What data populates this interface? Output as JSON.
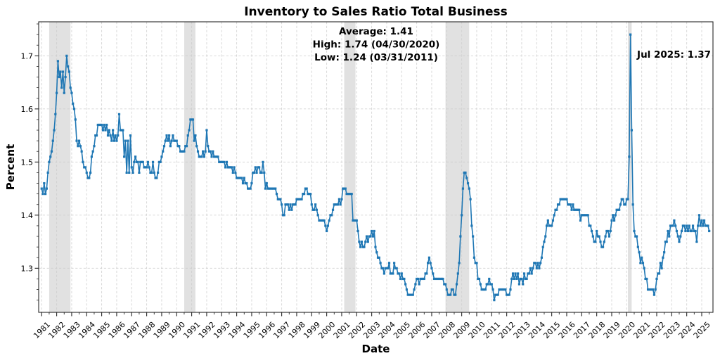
{
  "title": "Inventory to Sales Ratio Total Business",
  "annotations": {
    "stats_lines": [
      "Average: 1.41",
      "High: 1.74 (04/30/2020)",
      "Low: 1.24 (03/31/2011)"
    ],
    "latest_label": "Jul 2025: 1.37"
  },
  "chart_data": {
    "type": "line",
    "title": "Inventory to Sales Ratio Total Business",
    "xlabel": "Date",
    "ylabel": "Percent",
    "legend": "none",
    "grid": true,
    "line_color": "#1f77b4",
    "recession_band_color": "#cfcfcf",
    "grid_color": "#cccccc",
    "spine_color": "#262626",
    "xlim": [
      1980.8,
      2025.75
    ],
    "ylim": [
      1.217,
      1.764
    ],
    "y_ticks": [
      1.3,
      1.4,
      1.5,
      1.6,
      1.7
    ],
    "y_tick_labels": [
      "1.3",
      "1.4",
      "1.5",
      "1.6",
      "1.7"
    ],
    "x_tick_labels": [
      "1981",
      "1982",
      "1983",
      "1984",
      "1985",
      "1986",
      "1987",
      "1988",
      "1989",
      "1990",
      "1991",
      "1992",
      "1993",
      "1994",
      "1995",
      "1996",
      "1997",
      "1998",
      "1999",
      "2000",
      "2001",
      "2002",
      "2003",
      "2004",
      "2005",
      "2006",
      "2007",
      "2008",
      "2009",
      "2010",
      "2011",
      "2012",
      "2013",
      "2014",
      "2015",
      "2016",
      "2017",
      "2018",
      "2019",
      "2020",
      "2021",
      "2022",
      "2023",
      "2024",
      "2025"
    ],
    "recession_bands": [
      [
        1981.5,
        1982.92
      ],
      [
        1990.5,
        1991.25
      ],
      [
        2001.17,
        2001.92
      ],
      [
        2007.92,
        2009.5
      ],
      [
        2020.08,
        2020.33
      ]
    ],
    "stats": {
      "average": 1.41,
      "high": {
        "value": 1.74,
        "date": "04/30/2020"
      },
      "low": {
        "value": 1.24,
        "date": "03/31/2011"
      },
      "latest": {
        "label": "Jul 2025",
        "value": 1.37
      }
    },
    "series": [
      {
        "name": "Inventory to Sales Ratio Total Business",
        "frequency": "monthly",
        "values_by_year": [
          {
            "year": 1981,
            "values": [
              1.45,
              1.44,
              1.46,
              1.44,
              1.45,
              1.48,
              1.5,
              1.51,
              1.52,
              1.54,
              1.56,
              1.59
            ]
          },
          {
            "year": 1982,
            "values": [
              1.63,
              1.69,
              1.66,
              1.67,
              1.64,
              1.67,
              1.63,
              1.66,
              1.7,
              1.68,
              1.67,
              1.64
            ]
          },
          {
            "year": 1983,
            "values": [
              1.63,
              1.61,
              1.6,
              1.58,
              1.54,
              1.53,
              1.54,
              1.53,
              1.52,
              1.5,
              1.49,
              1.49
            ]
          },
          {
            "year": 1984,
            "values": [
              1.48,
              1.47,
              1.47,
              1.48,
              1.51,
              1.52,
              1.53,
              1.55,
              1.55,
              1.57,
              1.57,
              1.57
            ]
          },
          {
            "year": 1985,
            "values": [
              1.57,
              1.56,
              1.57,
              1.56,
              1.57,
              1.55,
              1.56,
              1.55,
              1.54,
              1.56,
              1.54,
              1.55
            ]
          },
          {
            "year": 1986,
            "values": [
              1.54,
              1.55,
              1.59,
              1.56,
              1.56,
              1.56,
              1.51,
              1.54,
              1.48,
              1.54,
              1.48,
              1.55
            ]
          },
          {
            "year": 1987,
            "values": [
              1.49,
              1.48,
              1.5,
              1.51,
              1.5,
              1.5,
              1.48,
              1.5,
              1.5,
              1.5,
              1.49,
              1.49
            ]
          },
          {
            "year": 1988,
            "values": [
              1.49,
              1.5,
              1.49,
              1.48,
              1.48,
              1.5,
              1.48,
              1.47,
              1.47,
              1.48,
              1.5,
              1.5
            ]
          },
          {
            "year": 1989,
            "values": [
              1.51,
              1.52,
              1.53,
              1.54,
              1.55,
              1.54,
              1.55,
              1.53,
              1.54,
              1.55,
              1.54,
              1.54
            ]
          },
          {
            "year": 1990,
            "values": [
              1.54,
              1.53,
              1.53,
              1.52,
              1.52,
              1.52,
              1.52,
              1.53,
              1.53,
              1.55,
              1.56,
              1.58
            ]
          },
          {
            "year": 1991,
            "values": [
              1.58,
              1.58,
              1.54,
              1.55,
              1.53,
              1.52,
              1.51,
              1.51,
              1.51,
              1.52,
              1.51,
              1.52
            ]
          },
          {
            "year": 1992,
            "values": [
              1.56,
              1.53,
              1.52,
              1.52,
              1.51,
              1.52,
              1.51,
              1.51,
              1.51,
              1.51,
              1.5,
              1.5
            ]
          },
          {
            "year": 1993,
            "values": [
              1.5,
              1.5,
              1.5,
              1.49,
              1.5,
              1.49,
              1.49,
              1.49,
              1.49,
              1.48,
              1.49,
              1.48
            ]
          },
          {
            "year": 1994,
            "values": [
              1.47,
              1.47,
              1.47,
              1.47,
              1.47,
              1.46,
              1.47,
              1.46,
              1.46,
              1.45,
              1.45,
              1.45
            ]
          },
          {
            "year": 1995,
            "values": [
              1.46,
              1.48,
              1.48,
              1.49,
              1.48,
              1.49,
              1.49,
              1.48,
              1.48,
              1.5,
              1.48,
              1.45
            ]
          },
          {
            "year": 1996,
            "values": [
              1.46,
              1.45,
              1.45,
              1.45,
              1.45,
              1.45,
              1.45,
              1.45,
              1.44,
              1.43,
              1.43,
              1.43
            ]
          },
          {
            "year": 1997,
            "values": [
              1.42,
              1.4,
              1.4,
              1.42,
              1.42,
              1.42,
              1.41,
              1.42,
              1.41,
              1.42,
              1.42,
              1.42
            ]
          },
          {
            "year": 1998,
            "values": [
              1.43,
              1.43,
              1.43,
              1.43,
              1.43,
              1.44,
              1.44,
              1.45,
              1.45,
              1.44,
              1.44,
              1.44
            ]
          },
          {
            "year": 1999,
            "values": [
              1.42,
              1.41,
              1.41,
              1.42,
              1.41,
              1.4,
              1.39,
              1.39,
              1.39,
              1.39,
              1.39,
              1.38
            ]
          },
          {
            "year": 2000,
            "values": [
              1.37,
              1.38,
              1.39,
              1.4,
              1.4,
              1.41,
              1.42,
              1.42,
              1.42,
              1.42,
              1.43,
              1.42
            ]
          },
          {
            "year": 2001,
            "values": [
              1.43,
              1.45,
              1.45,
              1.45,
              1.44,
              1.44,
              1.44,
              1.44,
              1.44,
              1.39,
              1.39,
              1.39
            ]
          },
          {
            "year": 2002,
            "values": [
              1.39,
              1.37,
              1.35,
              1.34,
              1.35,
              1.34,
              1.34,
              1.35,
              1.36,
              1.35,
              1.36,
              1.36
            ]
          },
          {
            "year": 2003,
            "values": [
              1.37,
              1.36,
              1.37,
              1.34,
              1.33,
              1.32,
              1.32,
              1.31,
              1.3,
              1.3,
              1.29,
              1.3
            ]
          },
          {
            "year": 2004,
            "values": [
              1.3,
              1.3,
              1.31,
              1.29,
              1.29,
              1.29,
              1.31,
              1.3,
              1.3,
              1.29,
              1.29,
              1.28
            ]
          },
          {
            "year": 2005,
            "values": [
              1.29,
              1.28,
              1.28,
              1.27,
              1.26,
              1.25,
              1.25,
              1.25,
              1.25,
              1.25,
              1.26,
              1.27
            ]
          },
          {
            "year": 2006,
            "values": [
              1.28,
              1.28,
              1.27,
              1.28,
              1.28,
              1.28,
              1.28,
              1.29,
              1.29,
              1.31,
              1.32,
              1.31
            ]
          },
          {
            "year": 2007,
            "values": [
              1.3,
              1.29,
              1.28,
              1.28,
              1.28,
              1.28,
              1.28,
              1.28,
              1.28,
              1.28,
              1.27,
              1.27
            ]
          },
          {
            "year": 2008,
            "values": [
              1.26,
              1.25,
              1.25,
              1.25,
              1.26,
              1.26,
              1.25,
              1.25,
              1.27,
              1.29,
              1.31,
              1.36
            ]
          },
          {
            "year": 2009,
            "values": [
              1.4,
              1.45,
              1.48,
              1.48,
              1.47,
              1.46,
              1.45,
              1.43,
              1.38,
              1.36,
              1.32,
              1.31
            ]
          },
          {
            "year": 2010,
            "values": [
              1.31,
              1.28,
              1.28,
              1.27,
              1.26,
              1.26,
              1.26,
              1.26,
              1.27,
              1.27,
              1.28,
              1.27
            ]
          },
          {
            "year": 2011,
            "values": [
              1.27,
              1.26,
              1.24,
              1.25,
              1.25,
              1.25,
              1.26,
              1.26,
              1.26,
              1.26,
              1.26,
              1.26
            ]
          },
          {
            "year": 2012,
            "values": [
              1.25,
              1.25,
              1.25,
              1.26,
              1.28,
              1.29,
              1.28,
              1.29,
              1.28,
              1.29,
              1.27,
              1.28
            ]
          },
          {
            "year": 2013,
            "values": [
              1.28,
              1.27,
              1.29,
              1.28,
              1.28,
              1.29,
              1.29,
              1.3,
              1.29,
              1.3,
              1.31,
              1.31
            ]
          },
          {
            "year": 2014,
            "values": [
              1.3,
              1.31,
              1.3,
              1.31,
              1.32,
              1.34,
              1.35,
              1.36,
              1.38,
              1.39,
              1.38,
              1.38
            ]
          },
          {
            "year": 2015,
            "values": [
              1.38,
              1.39,
              1.4,
              1.41,
              1.41,
              1.42,
              1.42,
              1.43,
              1.43,
              1.43,
              1.43,
              1.43
            ]
          },
          {
            "year": 2016,
            "values": [
              1.43,
              1.42,
              1.42,
              1.42,
              1.41,
              1.42,
              1.41,
              1.41,
              1.41,
              1.41,
              1.41,
              1.39
            ]
          },
          {
            "year": 2017,
            "values": [
              1.4,
              1.4,
              1.4,
              1.4,
              1.4,
              1.4,
              1.38,
              1.38,
              1.37,
              1.36,
              1.35,
              1.35
            ]
          },
          {
            "year": 2018,
            "values": [
              1.37,
              1.36,
              1.36,
              1.35,
              1.34,
              1.34,
              1.35,
              1.36,
              1.37,
              1.37,
              1.36,
              1.37
            ]
          },
          {
            "year": 2019,
            "values": [
              1.39,
              1.4,
              1.39,
              1.4,
              1.41,
              1.41,
              1.41,
              1.42,
              1.43,
              1.43,
              1.42,
              1.42
            ]
          },
          {
            "year": 2020,
            "values": [
              1.43,
              1.43,
              1.51,
              1.74,
              1.56,
              1.42,
              1.37,
              1.36,
              1.36,
              1.34,
              1.33,
              1.31
            ]
          },
          {
            "year": 2021,
            "values": [
              1.32,
              1.31,
              1.3,
              1.28,
              1.28,
              1.26,
              1.26,
              1.26,
              1.26,
              1.26,
              1.25,
              1.26
            ]
          },
          {
            "year": 2022,
            "values": [
              1.28,
              1.29,
              1.29,
              1.31,
              1.3,
              1.32,
              1.33,
              1.35,
              1.35,
              1.37,
              1.36,
              1.38
            ]
          },
          {
            "year": 2023,
            "values": [
              1.38,
              1.38,
              1.39,
              1.38,
              1.37,
              1.36,
              1.35,
              1.36,
              1.37,
              1.38,
              1.38,
              1.37
            ]
          },
          {
            "year": 2024,
            "values": [
              1.38,
              1.37,
              1.38,
              1.37,
              1.37,
              1.38,
              1.37,
              1.37,
              1.35,
              1.38,
              1.4,
              1.38
            ]
          },
          {
            "year": 2025,
            "values": [
              1.39,
              1.38,
              1.39,
              1.38,
              1.38,
              1.38,
              1.37
            ]
          }
        ]
      }
    ]
  }
}
